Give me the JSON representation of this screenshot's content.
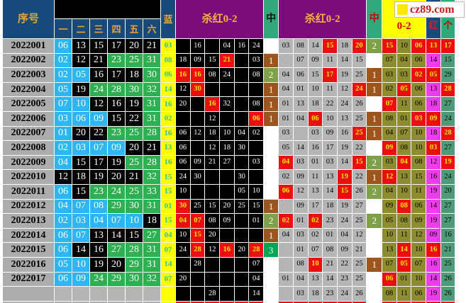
{
  "logo": {
    "text": "cz89.com",
    "icon": "yellow-square-icon"
  },
  "header": {
    "seq_label": "序号",
    "ball_cols": [
      "一",
      "二",
      "三",
      "四",
      "五",
      "六"
    ],
    "blue_label": "蓝",
    "kill_red_1_label": "杀红0-2",
    "hit_1_label": "中",
    "kill_red_2_label": "杀红0-2",
    "hit_2_label": "中",
    "oz_label": "0-2",
    "red_label": "红",
    "ge_label": "个"
  },
  "colors": {
    "header_blue": "#17497B",
    "header_gold": "#F0A431",
    "purple": "#7C0B7C",
    "yellow": "#FFFF00",
    "hit_red": "#EA0E0E",
    "hit_text": "#FFE400",
    "zone1_blue": "#2DB5F5",
    "zone2_black": "#000000",
    "zone3_green": "#2EAF52",
    "olive": "#8D8D2F",
    "magenta": "#EE3BEE",
    "teal": "#4E9B78",
    "count1_brown": "#9C561D",
    "count2_olive": "#7FA048",
    "count3_green": "#00A651",
    "gray_cell": "#B5B5B5",
    "seq_gray": "#ACACAC",
    "blue_value_text": "#2EC98E"
  },
  "rows": [
    {
      "seq": "2022001",
      "balls": [
        "06",
        "13",
        "15",
        "17",
        "20",
        "21"
      ],
      "blue": "03",
      "kill1": [
        "",
        "16",
        "",
        "04",
        "16",
        "24"
      ],
      "kill1_hits": [],
      "hit1": "",
      "kill2": [
        "03",
        "08",
        "14",
        "15",
        "18",
        "20"
      ],
      "kill2_hits": [
        3,
        5
      ],
      "hit2": "2",
      "oz": [
        "15",
        "10",
        "06"
      ],
      "oz_hits": [
        0,
        2
      ],
      "red": "13",
      "red_hit": true,
      "ge": "17",
      "ge_hit": true
    },
    {
      "seq": "2022002",
      "balls": [
        "02",
        "12",
        "21",
        "23",
        "25",
        "31"
      ],
      "blue": "08",
      "kill1": [
        "18",
        "09",
        "15",
        "21",
        "",
        "03"
      ],
      "kill1_hits": [
        3
      ],
      "hit1": "1",
      "kill2": [
        "",
        "07",
        "09",
        "11",
        "14",
        "15"
      ],
      "kill2_hits": [],
      "hit2": "",
      "oz": [
        "07",
        "04",
        "06"
      ],
      "oz_hits": [],
      "red": "14",
      "red_hit": false,
      "ge": "15",
      "ge_hit": false
    },
    {
      "seq": "2022003",
      "balls": [
        "02",
        "05",
        "16",
        "17",
        "18",
        "30"
      ],
      "blue": "06",
      "kill1": [
        "16",
        "16",
        "08",
        "24",
        "",
        "08"
      ],
      "kill1_hits": [
        0,
        1
      ],
      "hit1": "2",
      "kill2": [
        "04",
        "06",
        "15",
        "17",
        "19",
        "25"
      ],
      "kill2_hits": [
        3
      ],
      "hit2": "1",
      "oz": [
        "03",
        "03",
        "02"
      ],
      "oz_hits": [
        2
      ],
      "red": "05",
      "red_hit": true,
      "ge": "29",
      "ge_hit": false
    },
    {
      "seq": "2022004",
      "balls": [
        "05",
        "19",
        "24",
        "28",
        "30",
        "32"
      ],
      "blue": "14",
      "kill1": [
        "12",
        "30",
        "",
        "",
        "",
        ""
      ],
      "kill1_hits": [
        1
      ],
      "hit1": "1",
      "kill2": [
        "04",
        "01",
        "10",
        "11",
        "12",
        "24"
      ],
      "kill2_hits": [
        5
      ],
      "hit2": "1",
      "oz": [
        "02",
        "05",
        "06"
      ],
      "oz_hits": [
        1
      ],
      "red": "13",
      "red_hit": false,
      "ge": "28",
      "ge_hit": true
    },
    {
      "seq": "2022005",
      "balls": [
        "07",
        "10",
        "12",
        "16",
        "19",
        "31"
      ],
      "blue": "16",
      "kill1": [
        "20",
        "",
        "16",
        "32",
        "",
        "08"
      ],
      "kill1_hits": [
        2
      ],
      "hit1": "1",
      "kill2": [
        "01",
        "13",
        "18",
        "22",
        "24",
        "26"
      ],
      "kill2_hits": [],
      "hit2": "",
      "oz": [
        "07",
        "11",
        "06"
      ],
      "oz_hits": [
        0
      ],
      "red": "18",
      "red_hit": false,
      "ge": "27",
      "ge_hit": false
    },
    {
      "seq": "2022006",
      "balls": [
        "03",
        "06",
        "09",
        "15",
        "22",
        "31"
      ],
      "blue": "02",
      "kill1": [
        "",
        "",
        "12",
        "",
        "",
        "06"
      ],
      "kill1_hits": [
        5
      ],
      "hit1": "1",
      "kill2": [
        "01",
        "04",
        "06",
        "10",
        "13",
        "25"
      ],
      "kill2_hits": [
        2
      ],
      "hit2": "1",
      "oz": [
        "08",
        "01",
        "03"
      ],
      "oz_hits": [
        2
      ],
      "red": "09",
      "red_hit": true,
      "ge": "24",
      "ge_hit": false
    },
    {
      "seq": "2022007",
      "balls": [
        "01",
        "20",
        "22",
        "23",
        "25",
        "28"
      ],
      "blue": "16",
      "kill1": [
        "06",
        "12",
        "18",
        "10",
        "04",
        "02"
      ],
      "kill1_hits": [],
      "hit1": "",
      "kill2": [
        "03",
        "",
        "03",
        "09",
        "16",
        "25"
      ],
      "kill2_hits": [
        5
      ],
      "hit2": "1",
      "oz": [
        "04",
        "07",
        "10"
      ],
      "oz_hits": [],
      "red": "18",
      "red_hit": false,
      "ge": "28",
      "ge_hit": true
    },
    {
      "seq": "2022008",
      "balls": [
        "02",
        "03",
        "07",
        "09",
        "20",
        "21"
      ],
      "blue": "13",
      "kill1": [
        "06",
        "",
        "12",
        "18",
        "30",
        ""
      ],
      "kill1_hits": [],
      "hit1": "",
      "kill2": [
        "05",
        "14",
        "16",
        "17",
        "19",
        "22"
      ],
      "kill2_hits": [],
      "hit2": "",
      "oz": [
        "09",
        "08",
        "10"
      ],
      "oz_hits": [
        0
      ],
      "red": "03",
      "red_hit": true,
      "ge": "27",
      "ge_hit": false
    },
    {
      "seq": "2022009",
      "balls": [
        "04",
        "15",
        "17",
        "19",
        "25",
        "28"
      ],
      "blue": "16",
      "kill1": [
        "06",
        "09",
        "21",
        "27",
        "",
        "03"
      ],
      "kill1_hits": [],
      "hit1": "",
      "kill2": [
        "04",
        "03",
        "01",
        "03",
        "14",
        "15"
      ],
      "kill2_hits": [
        0,
        5
      ],
      "hit2": "2",
      "oz": [
        "03",
        "04",
        "08"
      ],
      "oz_hits": [
        1
      ],
      "red": "12",
      "red_hit": false,
      "ge": "19",
      "ge_hit": true
    },
    {
      "seq": "2022010",
      "balls": [
        "12",
        "18",
        "19",
        "20",
        "21",
        "32"
      ],
      "blue": "15",
      "kill1": [
        "24",
        "30",
        "",
        "",
        "30",
        ""
      ],
      "kill1_hits": [],
      "hit1": "",
      "kill2": [
        "02",
        "09",
        "11",
        "13",
        "19",
        "22"
      ],
      "kill2_hits": [
        4
      ],
      "hit2": "1",
      "oz": [
        "12",
        "13",
        "15"
      ],
      "oz_hits": [
        0
      ],
      "red": "16",
      "red_hit": false,
      "ge": "24",
      "ge_hit": false
    },
    {
      "seq": "2022011",
      "balls": [
        "06",
        "15",
        "23",
        "24",
        "25",
        "33"
      ],
      "blue": "15",
      "kill1": [
        "10",
        "",
        "",
        "",
        "05",
        "10"
      ],
      "kill1_hits": [],
      "hit1": "",
      "kill2": [
        "06",
        "12",
        "13",
        "14",
        "15",
        "26"
      ],
      "kill2_hits": [
        0,
        4
      ],
      "hit2": "2",
      "oz": [
        "04",
        "10",
        "11"
      ],
      "oz_hits": [],
      "red": "19",
      "red_hit": false,
      "ge": "20",
      "ge_hit": false
    },
    {
      "seq": "2022012",
      "balls": [
        "04",
        "07",
        "08",
        "29",
        "30",
        "31"
      ],
      "blue": "01",
      "kill1": [
        "30",
        "25",
        "15",
        "20",
        "25",
        "15"
      ],
      "kill1_hits": [
        0
      ],
      "hit1": "1",
      "kill2": [
        "",
        "09",
        "17",
        "18",
        "19",
        "27"
      ],
      "kill2_hits": [],
      "hit2": "",
      "oz": [
        "09",
        "08",
        "06"
      ],
      "oz_hits": [
        1
      ],
      "red": "14",
      "red_hit": false,
      "ge": "27",
      "ge_hit": false
    },
    {
      "seq": "2022013",
      "balls": [
        "02",
        "03",
        "04",
        "07",
        "10",
        "18"
      ],
      "blue": "15",
      "kill1": [
        "04",
        "07",
        "08",
        "09",
        "",
        "01"
      ],
      "kill1_hits": [
        0,
        1
      ],
      "hit1": "2",
      "kill2": [
        "02",
        "01",
        "02",
        "23",
        "24",
        "25"
      ],
      "kill2_hits": [
        0,
        2
      ],
      "hit2": "2",
      "oz": [
        "05",
        "08",
        "09"
      ],
      "oz_hits": [],
      "red": "19",
      "red_hit": false,
      "ge": "27",
      "ge_hit": false
    },
    {
      "seq": "2022014",
      "balls": [
        "06",
        "07",
        "13",
        "14",
        "15",
        "27"
      ],
      "blue": "04",
      "kill1": [
        "10",
        "15",
        "20",
        "",
        "",
        ""
      ],
      "kill1_hits": [
        1
      ],
      "hit1": "1",
      "kill2": [
        "04",
        "03",
        "02",
        "01",
        "04",
        "12"
      ],
      "kill2_hits": [],
      "hit2": "",
      "oz": [
        "10",
        "11",
        "12"
      ],
      "oz_hits": [],
      "red": "09",
      "red_hit": false,
      "ge": "16",
      "ge_hit": false
    },
    {
      "seq": "2022015",
      "balls": [
        "06",
        "14",
        "16",
        "27",
        "28",
        "31"
      ],
      "blue": "07",
      "kill1": [
        "24",
        "28",
        "12",
        "16",
        "20",
        "28"
      ],
      "kill1_hits": [
        1,
        3,
        5
      ],
      "hit1": "3",
      "kill2": [
        "",
        "01",
        "07",
        "08",
        "09",
        "21"
      ],
      "kill2_hits": [],
      "hit2": "",
      "oz": [
        "13",
        "14",
        "10"
      ],
      "oz_hits": [
        1
      ],
      "red": "16",
      "red_hit": true,
      "ge": "21",
      "ge_hit": false
    },
    {
      "seq": "2022016",
      "balls": [
        "05",
        "10",
        "19",
        "20",
        "29",
        "31"
      ],
      "blue": "14",
      "kill1": [
        "",
        "28",
        "",
        "",
        "",
        "07"
      ],
      "kill1_hits": [],
      "hit1": "",
      "kill2": [
        "",
        "08",
        "10",
        "21",
        "22",
        "25"
      ],
      "kill2_hits": [
        2
      ],
      "hit2": "1",
      "oz": [
        "07",
        "05",
        "07"
      ],
      "oz_hits": [
        1
      ],
      "red": "16",
      "red_hit": false,
      "ge": "25",
      "ge_hit": false
    },
    {
      "seq": "2022017",
      "balls": [
        "06",
        "09",
        "24",
        "29",
        "30",
        "32"
      ],
      "blue": "07",
      "kill1": [
        "20",
        "",
        "",
        "",
        "",
        "04"
      ],
      "kill1_hits": [],
      "hit1": "",
      "kill2": [
        "01",
        "04",
        "13",
        "14",
        "23",
        "25"
      ],
      "kill2_hits": [],
      "hit2": "",
      "oz": [
        "06",
        "01",
        "10"
      ],
      "oz_hits": [
        0
      ],
      "red": "14",
      "red_hit": false,
      "ge": "26",
      "ge_hit": false
    },
    {
      "seq": "",
      "balls": [
        "",
        "",
        "",
        "",
        "",
        ""
      ],
      "blue": "",
      "kill1": [
        "",
        "",
        "28",
        "",
        "",
        "14"
      ],
      "kill1_hits": [],
      "hit1": "",
      "kill2": [
        "",
        "03",
        "18",
        "23",
        "24",
        "26"
      ],
      "kill2_hits": [],
      "hit2": "",
      "oz": [
        "08",
        "11",
        "06"
      ],
      "oz_hits": [],
      "red": "19",
      "red_hit": false,
      "ge": "26",
      "ge_hit": false
    }
  ]
}
